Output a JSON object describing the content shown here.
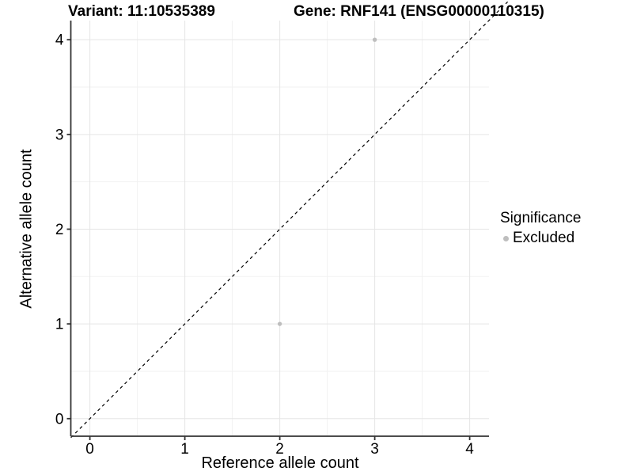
{
  "header": {
    "variant_title": "Variant: 11:10535389",
    "gene_title": "Gene: RNF141 (ENSG00000110315)"
  },
  "chart_data": {
    "type": "scatter",
    "title_left": "Variant: 11:10535389",
    "title_right": "Gene: RNF141 (ENSG00000110315)",
    "xlabel": "Reference allele count",
    "ylabel": "Alternative allele count",
    "xlim": [
      -0.2,
      4.4
    ],
    "ylim": [
      -0.2,
      4.4
    ],
    "x_ticks": [
      0,
      1,
      2,
      3,
      4
    ],
    "y_ticks": [
      0,
      1,
      2,
      3,
      4
    ],
    "grid": "major+minor",
    "identity_line": {
      "style": "dashed",
      "slope": 1,
      "intercept": 0,
      "color": "#000000"
    },
    "series": [
      {
        "name": "Excluded",
        "color": "#bebebe",
        "points": [
          [
            3,
            4
          ],
          [
            2,
            1
          ]
        ]
      }
    ],
    "legend": {
      "title": "Significance",
      "position": "right",
      "items": [
        {
          "label": "Excluded",
          "color": "#bebebe"
        }
      ]
    },
    "colors": {
      "axis_line": "#333333",
      "tick_label": "#000000",
      "grid_major": "#e5e5e5",
      "grid_minor": "#f2f2f2",
      "panel_background": "#ffffff"
    }
  }
}
